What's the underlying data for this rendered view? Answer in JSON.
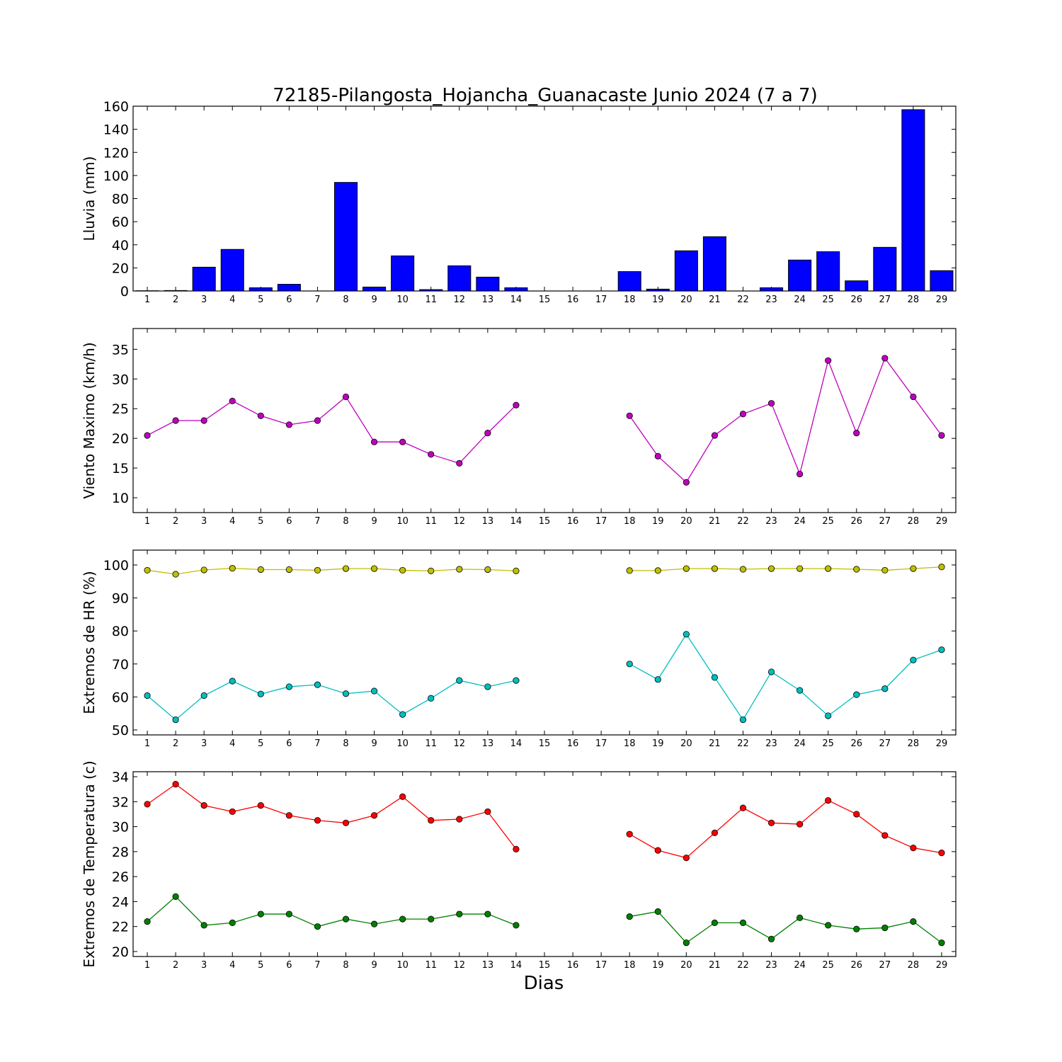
{
  "title": "72185-Pilangosta_Hojancha_Guanacaste Junio 2024  (7 a 7)",
  "xlabel": "Dias",
  "chart_data": [
    {
      "type": "bar",
      "title": "72185-Pilangosta_Hojancha_Guanacaste Junio 2024  (7 a 7)",
      "xlabel": "",
      "ylabel": "Lluvia (mm)",
      "ylim": [
        0,
        160
      ],
      "yticks": [
        0,
        20,
        40,
        60,
        80,
        100,
        120,
        140,
        160
      ],
      "x": [
        1,
        2,
        3,
        4,
        5,
        6,
        7,
        8,
        9,
        10,
        11,
        12,
        13,
        14,
        15,
        16,
        17,
        18,
        19,
        20,
        21,
        22,
        23,
        24,
        25,
        26,
        27,
        28,
        29
      ],
      "values": [
        0.2,
        0.4,
        20.6,
        36.0,
        2.8,
        5.8,
        0,
        94.0,
        3.4,
        30.4,
        1.2,
        21.8,
        12.0,
        2.8,
        0,
        0,
        0,
        16.8,
        1.6,
        34.8,
        47.0,
        0,
        2.8,
        26.8,
        34.0,
        8.8,
        37.8,
        157.0,
        17.6
      ],
      "colors": {
        "fill": "#0000ff",
        "edge": "#000000"
      }
    },
    {
      "type": "line",
      "ylabel": "Viento Maximo (km/h)",
      "ylim": [
        7.5,
        38.5
      ],
      "yticks": [
        10,
        15,
        20,
        25,
        30,
        35
      ],
      "x": [
        1,
        2,
        3,
        4,
        5,
        6,
        7,
        8,
        9,
        10,
        11,
        12,
        13,
        14,
        15,
        16,
        17,
        18,
        19,
        20,
        21,
        22,
        23,
        24,
        25,
        26,
        27,
        28,
        29
      ],
      "series": [
        {
          "color": "#bf00bf",
          "values": [
            20.5,
            23.0,
            23.0,
            26.3,
            23.8,
            22.3,
            23.0,
            27.0,
            19.4,
            19.4,
            17.3,
            15.8,
            20.9,
            25.6,
            null,
            null,
            null,
            23.8,
            17.0,
            12.6,
            20.5,
            24.1,
            25.9,
            14.0,
            33.1,
            20.9,
            33.5,
            27.0,
            20.5
          ]
        }
      ]
    },
    {
      "type": "line",
      "ylabel": "Extremos de HR (%)",
      "ylim": [
        48.5,
        104.5
      ],
      "yticks": [
        50,
        60,
        70,
        80,
        90,
        100
      ],
      "x": [
        1,
        2,
        3,
        4,
        5,
        6,
        7,
        8,
        9,
        10,
        11,
        12,
        13,
        14,
        15,
        16,
        17,
        18,
        19,
        20,
        21,
        22,
        23,
        24,
        25,
        26,
        27,
        28,
        29
      ],
      "series": [
        {
          "color": "#bfbf00",
          "values": [
            98.4,
            97.2,
            98.5,
            99.0,
            98.6,
            98.6,
            98.4,
            98.9,
            98.9,
            98.4,
            98.2,
            98.7,
            98.6,
            98.2,
            null,
            null,
            null,
            98.3,
            98.3,
            98.9,
            98.9,
            98.7,
            98.9,
            98.9,
            98.9,
            98.7,
            98.4,
            98.9,
            99.4
          ]
        },
        {
          "color": "#00bfbf",
          "values": [
            60.4,
            53.1,
            60.4,
            64.8,
            60.9,
            63.1,
            63.7,
            61.0,
            61.8,
            54.7,
            59.6,
            65.0,
            63.1,
            65.0,
            null,
            null,
            null,
            70.0,
            65.3,
            79.0,
            65.9,
            53.1,
            67.6,
            62.0,
            54.3,
            60.7,
            62.5,
            71.2,
            74.3
          ]
        }
      ]
    },
    {
      "type": "line",
      "ylabel": "Extremos de Temperatura (c)",
      "ylim": [
        19.6,
        34.4
      ],
      "yticks": [
        20,
        22,
        24,
        26,
        28,
        30,
        32,
        34
      ],
      "x": [
        1,
        2,
        3,
        4,
        5,
        6,
        7,
        8,
        9,
        10,
        11,
        12,
        13,
        14,
        15,
        16,
        17,
        18,
        19,
        20,
        21,
        22,
        23,
        24,
        25,
        26,
        27,
        28,
        29
      ],
      "series": [
        {
          "color": "#ff0000",
          "values": [
            31.8,
            33.4,
            31.7,
            31.2,
            31.7,
            30.9,
            30.5,
            30.3,
            30.9,
            32.4,
            30.5,
            30.6,
            31.2,
            28.2,
            null,
            null,
            null,
            29.4,
            28.1,
            27.5,
            29.5,
            31.5,
            30.3,
            30.2,
            32.1,
            31.0,
            29.3,
            28.3,
            27.9
          ]
        },
        {
          "color": "#008000",
          "values": [
            22.4,
            24.4,
            22.1,
            22.3,
            23.0,
            23.0,
            22.0,
            22.6,
            22.2,
            22.6,
            22.6,
            23.0,
            23.0,
            22.1,
            null,
            null,
            null,
            22.8,
            23.2,
            20.7,
            22.3,
            22.3,
            21.0,
            22.7,
            22.1,
            21.8,
            21.9,
            22.4,
            20.7
          ]
        }
      ]
    }
  ]
}
